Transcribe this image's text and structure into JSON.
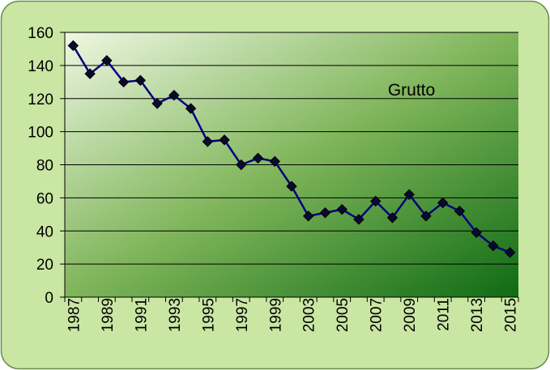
{
  "chart_data": {
    "type": "line",
    "categories": [
      "1987",
      null,
      "1989",
      null,
      "1991",
      null,
      "1993",
      null,
      "1995",
      null,
      "1997",
      null,
      "1999",
      null,
      "2003",
      null,
      "2005",
      null,
      "2007",
      null,
      "2009",
      null,
      "2011",
      null,
      "2013",
      null,
      "2015"
    ],
    "series": [
      {
        "name": "Grutto",
        "color": "#000080",
        "values": [
          152,
          135,
          143,
          130,
          131,
          117,
          122,
          114,
          94,
          95,
          80,
          84,
          82,
          67,
          49,
          51,
          53,
          47,
          58,
          48,
          62,
          49,
          57,
          52,
          39,
          31,
          27
        ]
      }
    ],
    "ylim": [
      0,
      160
    ],
    "yticks": [
      0,
      20,
      40,
      60,
      80,
      100,
      120,
      140,
      160
    ],
    "grid": true
  }
}
